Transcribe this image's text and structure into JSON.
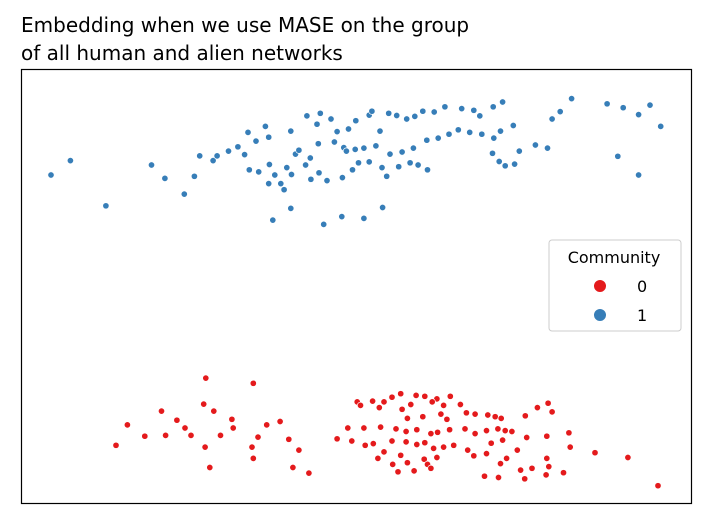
{
  "chart_data": {
    "type": "scatter",
    "title_lines": [
      "Embedding when we use MASE on the group",
      "of all human and alien networks"
    ],
    "xlabel": "",
    "ylabel": "",
    "xlim": [
      0,
      100
    ],
    "ylim": [
      0,
      100
    ],
    "axes_ticks": false,
    "grid": false,
    "legend": {
      "title": "Community",
      "placement": "center-right",
      "entries": [
        {
          "label": "0",
          "color": "#e41a1c"
        },
        {
          "label": "1",
          "color": "#377eb8"
        }
      ]
    },
    "series": [
      {
        "name": "0",
        "color": "#e41a1c",
        "points": [
          [
            27.5,
            28.9
          ],
          [
            34.6,
            27.7
          ],
          [
            15.8,
            18.1
          ],
          [
            20.9,
            21.3
          ],
          [
            28.7,
            21.3
          ],
          [
            27.2,
            22.9
          ],
          [
            23.2,
            19.2
          ],
          [
            31.4,
            19.4
          ],
          [
            36.6,
            18.1
          ],
          [
            38.6,
            18.9
          ],
          [
            31.6,
            17.4
          ],
          [
            24.4,
            17.4
          ],
          [
            18.4,
            15.5
          ],
          [
            21.5,
            15.7
          ],
          [
            25.3,
            15.7
          ],
          [
            29.7,
            15.7
          ],
          [
            27.4,
            13.0
          ],
          [
            34.4,
            13.0
          ],
          [
            35.3,
            15.3
          ],
          [
            39.9,
            14.8
          ],
          [
            41.4,
            12.3
          ],
          [
            34.6,
            10.4
          ],
          [
            40.5,
            8.3
          ],
          [
            14.1,
            13.4
          ],
          [
            28.1,
            8.3
          ],
          [
            50.1,
            23.4
          ],
          [
            52.4,
            23.6
          ],
          [
            54.1,
            23.4
          ],
          [
            55.3,
            24.5
          ],
          [
            56.6,
            25.3
          ],
          [
            58.9,
            24.9
          ],
          [
            60.2,
            24.7
          ],
          [
            62.0,
            24.1
          ],
          [
            63.0,
            22.6
          ],
          [
            65.5,
            22.8
          ],
          [
            64.0,
            24.7
          ],
          [
            50.6,
            22.6
          ],
          [
            53.4,
            22.1
          ],
          [
            56.8,
            21.7
          ],
          [
            58.1,
            22.8
          ],
          [
            61.3,
            23.4
          ],
          [
            66.4,
            20.9
          ],
          [
            67.7,
            20.6
          ],
          [
            69.6,
            20.4
          ],
          [
            70.7,
            20.0
          ],
          [
            71.6,
            19.6
          ],
          [
            57.6,
            19.6
          ],
          [
            59.9,
            20.0
          ],
          [
            62.6,
            20.6
          ],
          [
            63.5,
            19.4
          ],
          [
            48.7,
            17.4
          ],
          [
            51.1,
            17.4
          ],
          [
            53.6,
            17.6
          ],
          [
            55.9,
            17.2
          ],
          [
            57.4,
            16.6
          ],
          [
            59.0,
            17.0
          ],
          [
            61.1,
            16.1
          ],
          [
            62.1,
            16.4
          ],
          [
            63.9,
            17.0
          ],
          [
            66.2,
            17.2
          ],
          [
            67.7,
            16.1
          ],
          [
            69.4,
            16.8
          ],
          [
            71.1,
            17.2
          ],
          [
            73.2,
            16.6
          ],
          [
            47.1,
            14.9
          ],
          [
            49.3,
            14.4
          ],
          [
            51.3,
            13.4
          ],
          [
            52.5,
            13.8
          ],
          [
            55.3,
            14.4
          ],
          [
            57.4,
            14.2
          ],
          [
            59.0,
            13.6
          ],
          [
            60.2,
            14.0
          ],
          [
            61.5,
            12.7
          ],
          [
            63.0,
            13.0
          ],
          [
            64.5,
            13.4
          ],
          [
            66.6,
            12.3
          ],
          [
            67.5,
            11.0
          ],
          [
            69.4,
            11.5
          ],
          [
            70.1,
            13.9
          ],
          [
            71.8,
            14.6
          ],
          [
            72.2,
            16.8
          ],
          [
            75.2,
            20.2
          ],
          [
            77.0,
            22.1
          ],
          [
            78.6,
            23.1
          ],
          [
            79.2,
            21.1
          ],
          [
            81.7,
            16.3
          ],
          [
            81.9,
            13.0
          ],
          [
            78.4,
            15.5
          ],
          [
            75.4,
            15.2
          ],
          [
            74.0,
            12.3
          ],
          [
            72.4,
            10.4
          ],
          [
            71.5,
            9.2
          ],
          [
            69.1,
            6.3
          ],
          [
            71.2,
            6.0
          ],
          [
            74.5,
            7.7
          ],
          [
            75.1,
            5.7
          ],
          [
            78.4,
            10.4
          ],
          [
            78.7,
            8.5
          ],
          [
            80.9,
            7.1
          ],
          [
            76.2,
            8.1
          ],
          [
            78.3,
            6.6
          ],
          [
            55.4,
            9.0
          ],
          [
            56.6,
            11.1
          ],
          [
            57.6,
            9.4
          ],
          [
            56.2,
            7.3
          ],
          [
            58.6,
            7.5
          ],
          [
            54.1,
            11.9
          ],
          [
            53.2,
            10.4
          ],
          [
            60.1,
            10.2
          ],
          [
            60.6,
            9.0
          ],
          [
            61.1,
            8.1
          ],
          [
            62.0,
            10.6
          ],
          [
            85.6,
            11.7
          ],
          [
            90.5,
            10.6
          ],
          [
            95.0,
            4.1
          ],
          [
            42.9,
            7.0
          ]
        ]
      },
      {
        "name": "1",
        "color": "#377eb8",
        "points": [
          [
            4.4,
            75.7
          ],
          [
            7.3,
            79.0
          ],
          [
            12.6,
            68.6
          ],
          [
            19.4,
            78.0
          ],
          [
            21.4,
            74.9
          ],
          [
            24.3,
            71.3
          ],
          [
            26.6,
            80.1
          ],
          [
            28.6,
            79.0
          ],
          [
            29.2,
            80.1
          ],
          [
            30.9,
            81.2
          ],
          [
            34.0,
            76.9
          ],
          [
            35.4,
            76.4
          ],
          [
            37.8,
            75.7
          ],
          [
            38.7,
            73.7
          ],
          [
            39.2,
            72.3
          ],
          [
            25.8,
            75.4
          ],
          [
            37.5,
            65.3
          ],
          [
            40.9,
            80.5
          ],
          [
            41.4,
            81.4
          ],
          [
            43.1,
            79.6
          ],
          [
            42.4,
            78.0
          ],
          [
            44.3,
            82.9
          ],
          [
            46.7,
            83.3
          ],
          [
            48.1,
            82.0
          ],
          [
            48.5,
            81.2
          ],
          [
            49.8,
            81.6
          ],
          [
            51.1,
            81.9
          ],
          [
            52.9,
            82.4
          ],
          [
            53.5,
            85.8
          ],
          [
            40.2,
            85.8
          ],
          [
            42.6,
            89.3
          ],
          [
            44.6,
            89.9
          ],
          [
            46.2,
            88.6
          ],
          [
            49.9,
            88.2
          ],
          [
            51.9,
            89.5
          ],
          [
            52.3,
            90.4
          ],
          [
            54.8,
            89.9
          ],
          [
            56.0,
            89.4
          ],
          [
            57.5,
            88.6
          ],
          [
            58.7,
            89.2
          ],
          [
            59.9,
            90.4
          ],
          [
            61.6,
            90.2
          ],
          [
            63.2,
            91.4
          ],
          [
            65.7,
            91.0
          ],
          [
            67.5,
            90.6
          ],
          [
            68.4,
            89.3
          ],
          [
            70.4,
            91.4
          ],
          [
            71.8,
            92.5
          ],
          [
            43.2,
            74.7
          ],
          [
            44.4,
            76.2
          ],
          [
            45.6,
            74.4
          ],
          [
            47.9,
            75.1
          ],
          [
            49.4,
            76.9
          ],
          [
            50.3,
            78.5
          ],
          [
            51.9,
            78.7
          ],
          [
            53.8,
            77.4
          ],
          [
            54.5,
            75.4
          ],
          [
            56.3,
            77.6
          ],
          [
            58.0,
            78.5
          ],
          [
            59.2,
            78.0
          ],
          [
            60.6,
            76.9
          ],
          [
            55.0,
            80.5
          ],
          [
            56.8,
            81.0
          ],
          [
            58.5,
            81.9
          ],
          [
            60.5,
            83.7
          ],
          [
            62.2,
            84.2
          ],
          [
            63.8,
            85.1
          ],
          [
            65.2,
            86.1
          ],
          [
            66.9,
            85.5
          ],
          [
            68.7,
            85.1
          ],
          [
            70.5,
            84.2
          ],
          [
            71.5,
            85.8
          ],
          [
            73.4,
            87.1
          ],
          [
            70.3,
            80.7
          ],
          [
            71.3,
            78.8
          ],
          [
            72.2,
            77.8
          ],
          [
            73.6,
            78.2
          ],
          [
            74.3,
            81.2
          ],
          [
            76.7,
            82.6
          ],
          [
            78.5,
            81.9
          ],
          [
            79.2,
            88.6
          ],
          [
            80.4,
            90.3
          ],
          [
            82.1,
            93.3
          ],
          [
            87.4,
            92.1
          ],
          [
            89.8,
            91.2
          ],
          [
            93.8,
            91.8
          ],
          [
            92.1,
            89.6
          ],
          [
            95.4,
            86.9
          ],
          [
            89.0,
            80.0
          ],
          [
            92.1,
            75.7
          ],
          [
            53.9,
            68.2
          ],
          [
            51.1,
            65.7
          ],
          [
            47.8,
            66.1
          ],
          [
            45.1,
            64.3
          ],
          [
            40.2,
            68.0
          ],
          [
            36.9,
            73.7
          ],
          [
            40.3,
            75.8
          ],
          [
            39.6,
            77.4
          ],
          [
            37.0,
            78.1
          ],
          [
            33.3,
            80.4
          ],
          [
            32.3,
            82.2
          ],
          [
            35.0,
            83.5
          ],
          [
            36.9,
            84.4
          ],
          [
            36.4,
            86.9
          ],
          [
            33.8,
            85.5
          ],
          [
            44.1,
            87.4
          ],
          [
            47.1,
            85.7
          ],
          [
            48.8,
            86.3
          ]
        ]
      }
    ]
  }
}
